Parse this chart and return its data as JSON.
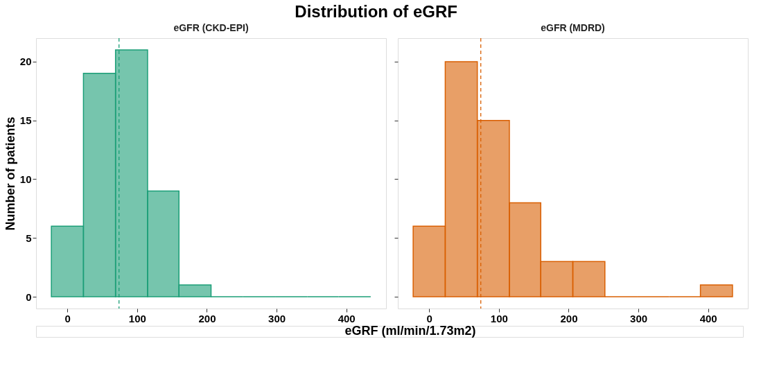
{
  "chart_data": [
    {
      "type": "histogram",
      "title": "Distribution of eGRF",
      "subtitle": "eGFR (CKD-EPI)",
      "xlabel": "eGRF (ml/min/1.73m2)",
      "ylabel": "Number of patients",
      "bins": [
        -23,
        23,
        69,
        115,
        160,
        206,
        252,
        298,
        344,
        389,
        435
      ],
      "series": [
        {
          "color": "#1b9e77",
          "values": [
            6,
            19,
            21,
            9,
            1,
            0,
            0,
            0,
            0,
            0
          ]
        }
      ],
      "ref_lines": [
        {
          "axis": "x",
          "value": 74,
          "color": "#1b9e77",
          "line_style": "dashed"
        }
      ],
      "xlim": [
        -45,
        457
      ],
      "xticks": [
        0,
        100,
        200,
        300,
        400
      ],
      "ylim": [
        -1,
        22
      ],
      "yticks": [
        0,
        5,
        10,
        15,
        20
      ],
      "grid": false
    },
    {
      "type": "histogram",
      "subtitle": "eGFR (MDRD)",
      "bins": [
        -23,
        23,
        69,
        115,
        160,
        206,
        252,
        298,
        344,
        389,
        435
      ],
      "series": [
        {
          "color": "#d95f02",
          "values": [
            6,
            20,
            15,
            8,
            3,
            3,
            0,
            0,
            0,
            1
          ]
        }
      ],
      "ref_lines": [
        {
          "axis": "x",
          "value": 74,
          "color": "#d95f02",
          "line_style": "dashed"
        }
      ],
      "xlim": [
        -45,
        457
      ],
      "xticks": [
        0,
        100,
        200,
        300,
        400
      ],
      "ylim": [
        -1,
        22
      ],
      "yticks": [
        0,
        5,
        10,
        15,
        20
      ],
      "tick_labels": "x",
      "grid": false
    }
  ]
}
